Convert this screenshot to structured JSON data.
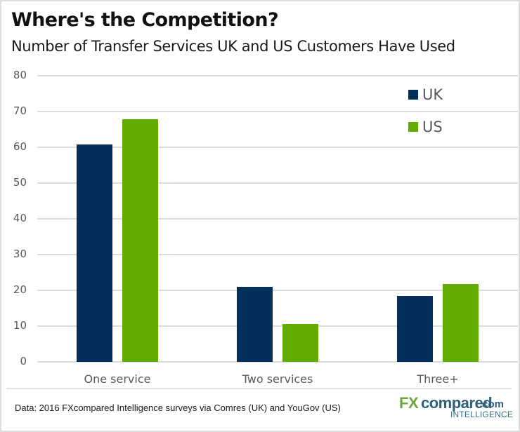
{
  "header": {
    "title": "Where's the Competition?",
    "subtitle": "Number of Transfer Services UK and US Customers Have Used"
  },
  "footer": {
    "source": "Data: 2016 FXcompared Intelligence surveys via Comres (UK) and YouGov (US)"
  },
  "logo": {
    "fx": "FX",
    "compared": "compared",
    "com": ".com",
    "intelligence": "INTELLIGENCE"
  },
  "colors": {
    "uk": "#03305a",
    "us": "#60ad00",
    "grid": "#dcdcdc"
  },
  "legend": [
    {
      "label": "UK",
      "color": "#03305a"
    },
    {
      "label": "US",
      "color": "#60ad00"
    }
  ],
  "chart_data": {
    "type": "bar",
    "title": "Where's the Competition?",
    "subtitle": "Number of Transfer Services UK and US Customers Have Used",
    "categories": [
      "One service",
      "Two services",
      "Three+"
    ],
    "series": [
      {
        "name": "UK",
        "values": [
          60.8,
          20.9,
          18.5
        ]
      },
      {
        "name": "US",
        "values": [
          67.8,
          10.6,
          21.8
        ]
      }
    ],
    "xlabel": "",
    "ylabel": "",
    "ylim": [
      0,
      80
    ],
    "yticks": [
      "0",
      "10",
      "20",
      "30",
      "40",
      "50",
      "60",
      "70",
      "80"
    ],
    "grid": true,
    "legend_position": "top-right",
    "annotations": [
      "Data: 2016 FXcompared Intelligence surveys via Comres (UK) and YouGov (US)"
    ]
  }
}
